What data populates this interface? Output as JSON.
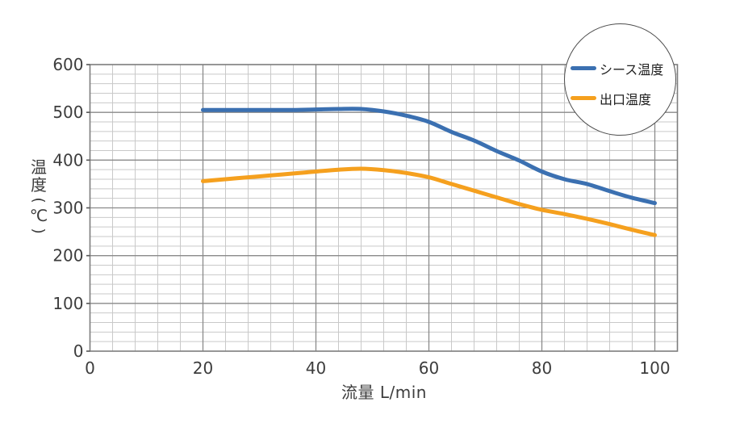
{
  "chart_data": {
    "type": "line",
    "title": "",
    "xlabel": "流量 L/min",
    "ylabel": "温度(℃)",
    "xlim": [
      0,
      104
    ],
    "ylim": [
      0,
      600
    ],
    "xticks": [
      0,
      20,
      40,
      60,
      80,
      100
    ],
    "yticks": [
      0,
      100,
      200,
      300,
      400,
      500,
      600
    ],
    "x_minor_step": 4,
    "y_minor_step": 20,
    "grid": "major-and-minor",
    "legend_position": "top-right-circle",
    "x": [
      20,
      24,
      28,
      32,
      36,
      40,
      44,
      48,
      52,
      56,
      60,
      64,
      68,
      72,
      76,
      80,
      84,
      88,
      92,
      96,
      100
    ],
    "series": [
      {
        "name": "シース温度",
        "color": "#3B70B1",
        "values": [
          505,
          505,
          505,
          505,
          505,
          506,
          507,
          507,
          502,
          493,
          480,
          459,
          441,
          419,
          399,
          376,
          360,
          350,
          335,
          321,
          310
        ]
      },
      {
        "name": "出口温度",
        "color": "#F5A01E",
        "values": [
          356,
          360,
          364,
          368,
          372,
          376,
          380,
          382,
          379,
          373,
          364,
          350,
          336,
          322,
          308,
          296,
          287,
          277,
          266,
          254,
          243
        ]
      }
    ]
  },
  "colors": {
    "background": "#FFFFFF",
    "minor_grid": "#C9C9C9",
    "major_grid": "#8A8A8A",
    "plot_border": "#7D7D7D",
    "tick_mark": "#555555",
    "axis_text": "#3D3D3D",
    "legend_border": "#4D4D4D",
    "legend_text": "#1F1F1F"
  }
}
